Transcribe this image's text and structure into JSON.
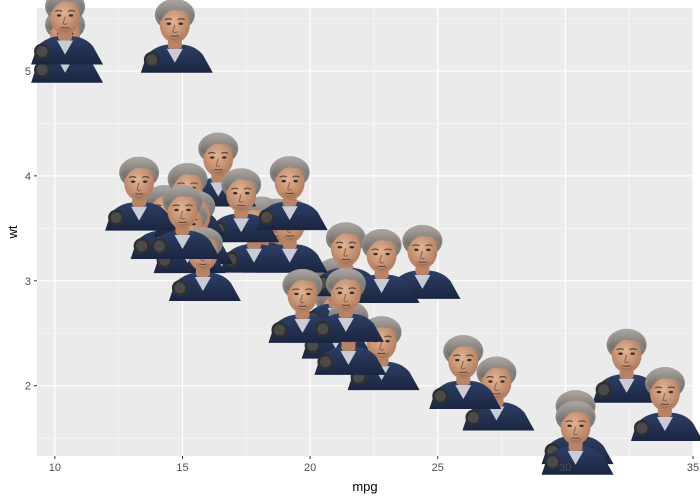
{
  "chart_data": {
    "type": "scatter",
    "xlabel": "mpg",
    "ylabel": "wt",
    "xlim": [
      9.3,
      35.0
    ],
    "ylim": [
      1.33,
      5.6
    ],
    "x_ticks": [
      10,
      15,
      20,
      25,
      30,
      35
    ],
    "y_ticks": [
      2,
      3,
      4,
      5
    ],
    "grid": true,
    "legend": "none",
    "marker": "face-image",
    "points": [
      {
        "x": 21.0,
        "y": 2.62
      },
      {
        "x": 21.0,
        "y": 2.875
      },
      {
        "x": 22.8,
        "y": 2.32
      },
      {
        "x": 21.4,
        "y": 3.215
      },
      {
        "x": 18.7,
        "y": 3.44
      },
      {
        "x": 18.1,
        "y": 3.46
      },
      {
        "x": 14.3,
        "y": 3.57
      },
      {
        "x": 24.4,
        "y": 3.19
      },
      {
        "x": 22.8,
        "y": 3.15
      },
      {
        "x": 19.2,
        "y": 3.44
      },
      {
        "x": 17.8,
        "y": 3.44
      },
      {
        "x": 16.4,
        "y": 4.07
      },
      {
        "x": 17.3,
        "y": 3.73
      },
      {
        "x": 15.2,
        "y": 3.78
      },
      {
        "x": 10.4,
        "y": 5.25
      },
      {
        "x": 10.4,
        "y": 5.424
      },
      {
        "x": 14.7,
        "y": 5.345
      },
      {
        "x": 32.4,
        "y": 2.2
      },
      {
        "x": 30.4,
        "y": 1.615
      },
      {
        "x": 33.9,
        "y": 1.835
      },
      {
        "x": 21.5,
        "y": 2.465
      },
      {
        "x": 15.5,
        "y": 3.52
      },
      {
        "x": 15.2,
        "y": 3.435
      },
      {
        "x": 13.3,
        "y": 3.84
      },
      {
        "x": 19.2,
        "y": 3.845
      },
      {
        "x": 27.3,
        "y": 1.935
      },
      {
        "x": 26.0,
        "y": 2.14
      },
      {
        "x": 30.4,
        "y": 1.513
      },
      {
        "x": 15.8,
        "y": 3.17
      },
      {
        "x": 19.7,
        "y": 2.77
      },
      {
        "x": 15.0,
        "y": 3.57
      },
      {
        "x": 21.4,
        "y": 2.78
      }
    ],
    "colors": {
      "panel": "#ebebeb",
      "grid_major": "#ffffff",
      "tick": "#333333",
      "tick_text": "#4d4d4d"
    }
  }
}
